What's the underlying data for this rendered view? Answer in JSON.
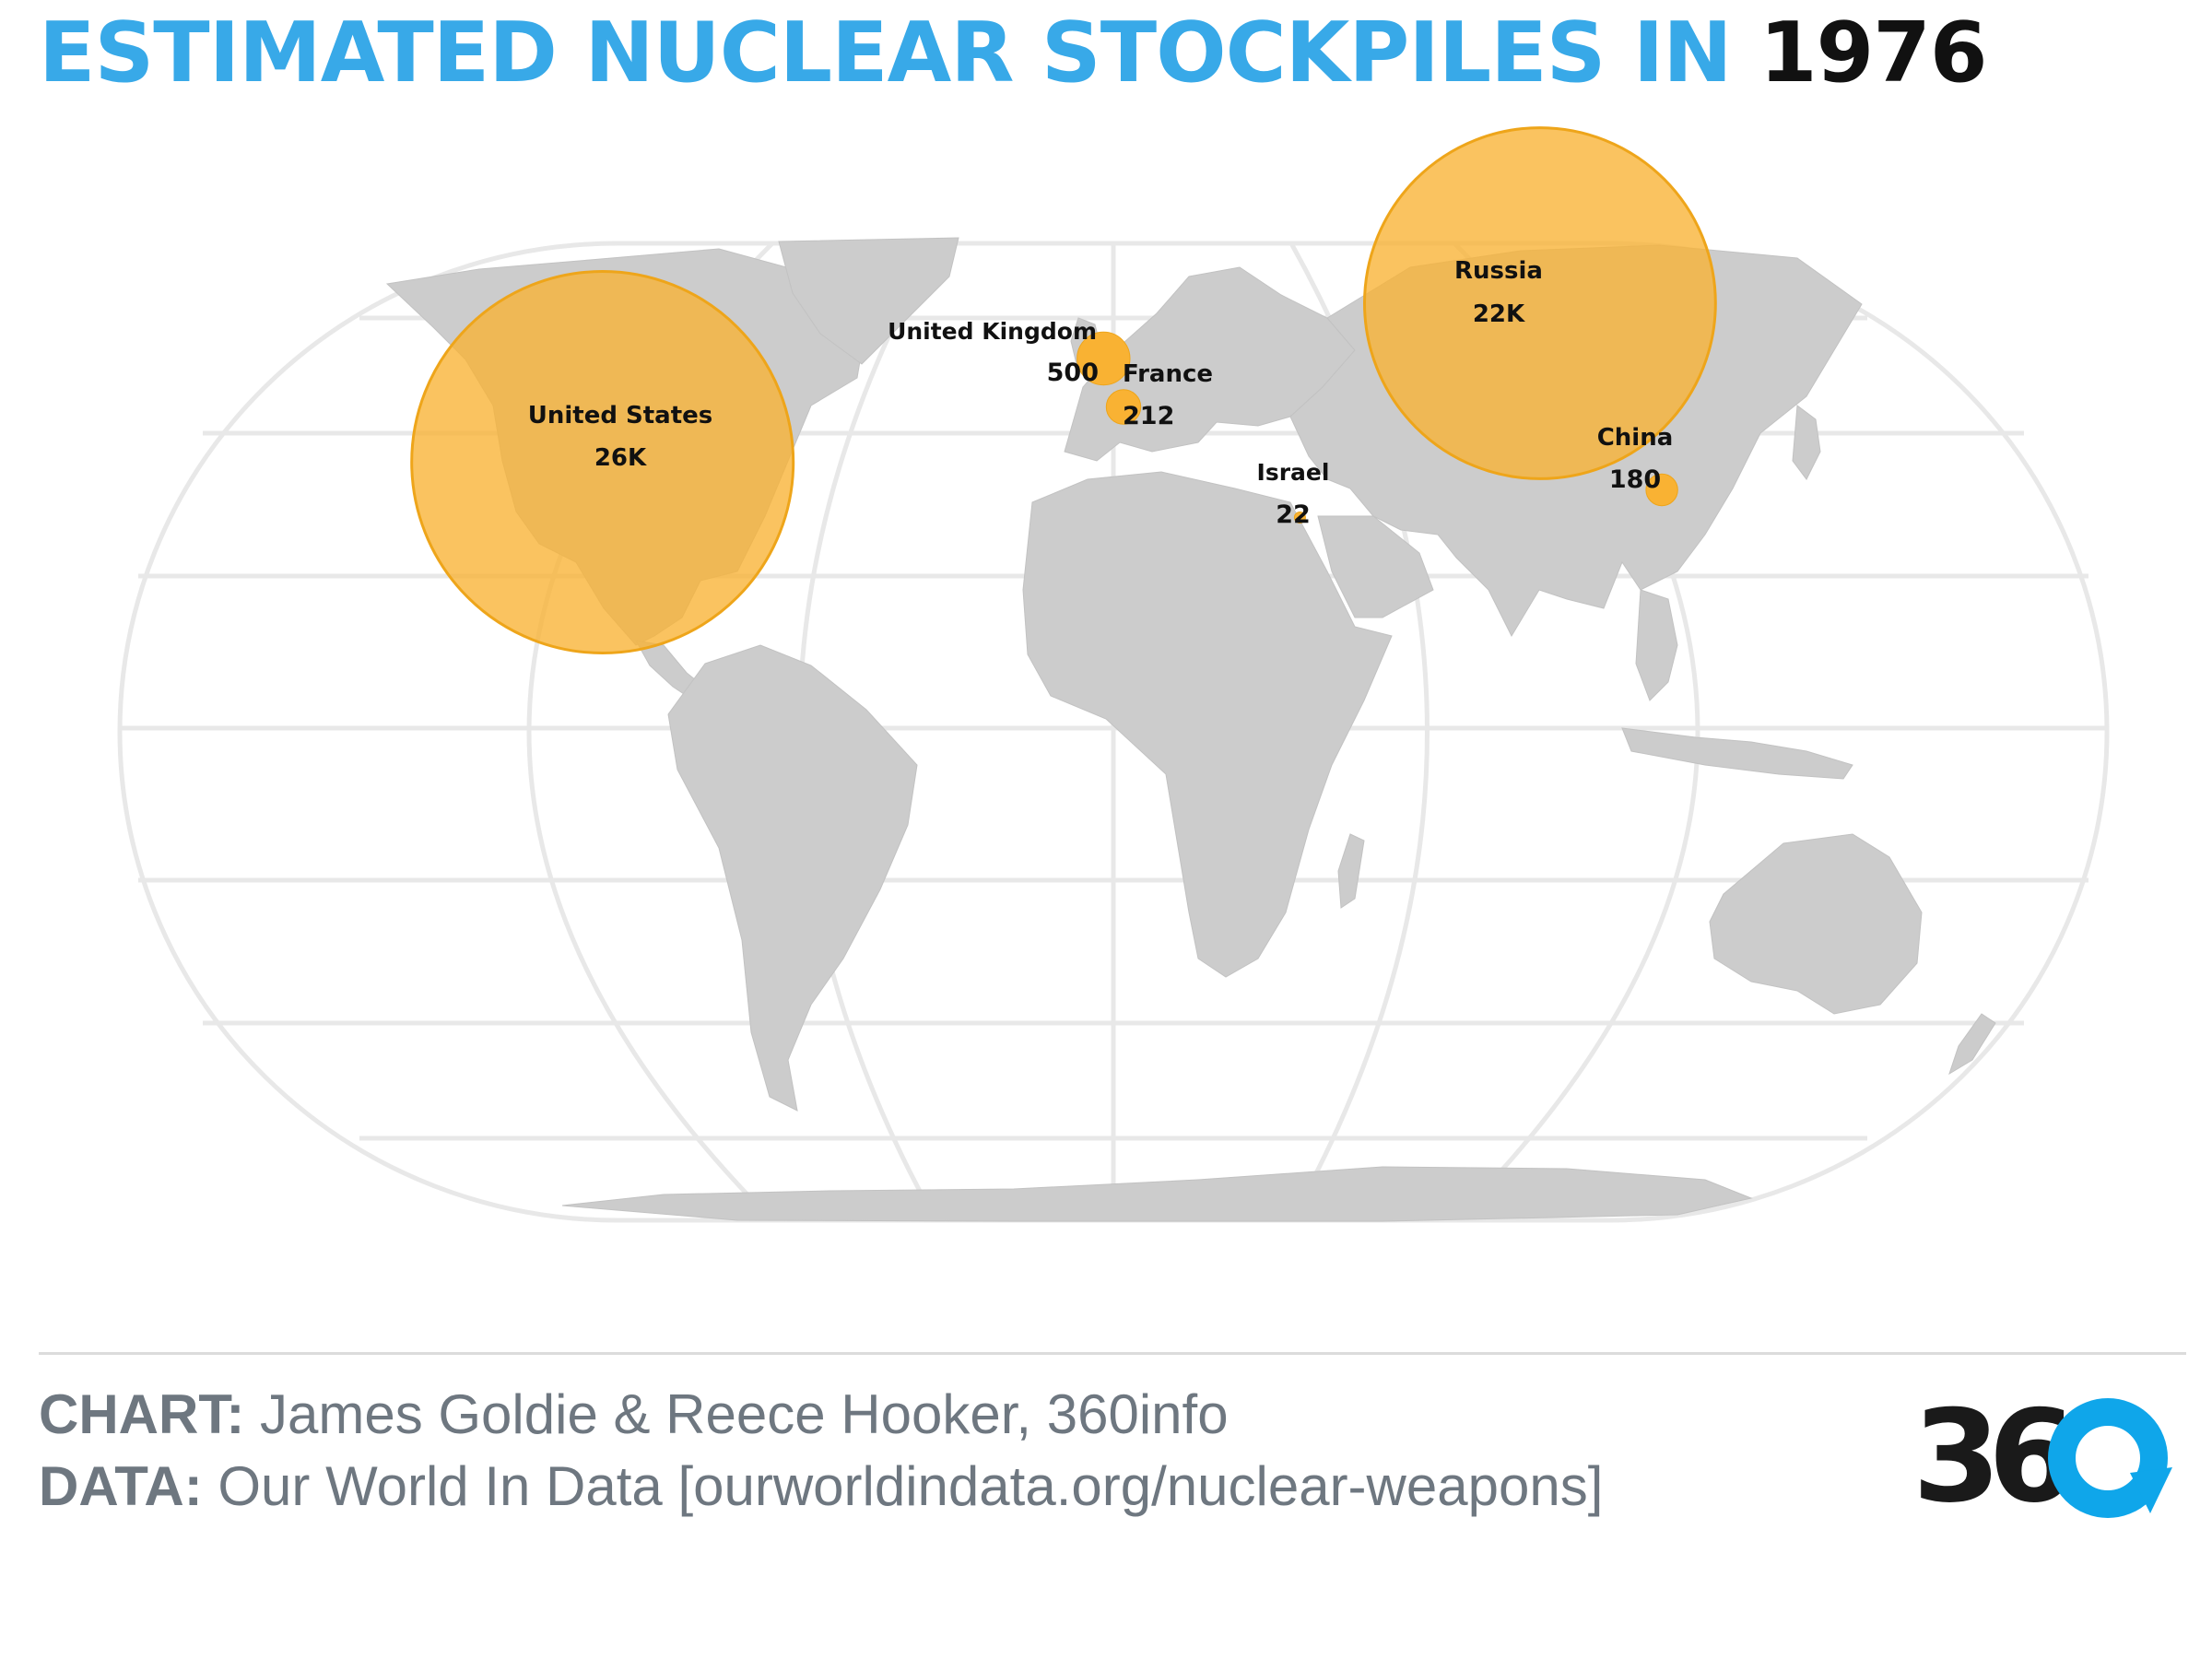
{
  "title": {
    "main": "ESTIMATED NUCLEAR STOCKPILES IN",
    "year": "1976"
  },
  "chart_data": {
    "type": "bubble-map",
    "year": "1976",
    "marker_color": "#f9b233",
    "countries": [
      {
        "name": "United States",
        "value_label": "26K",
        "value": 26000,
        "lon": -98,
        "lat": 39
      },
      {
        "name": "Russia",
        "value_label": "22K",
        "value": 22000,
        "lon": 90,
        "lat": 62
      },
      {
        "name": "United Kingdom",
        "value_label": "500",
        "value": 500,
        "lon": -2,
        "lat": 54
      },
      {
        "name": "France",
        "value_label": "212",
        "value": 212,
        "lon": 2,
        "lat": 47
      },
      {
        "name": "China",
        "value_label": "180",
        "value": 180,
        "lon": 104,
        "lat": 35
      },
      {
        "name": "Israel",
        "value_label": "22",
        "value": 22,
        "lon": 35,
        "lat": 31
      }
    ]
  },
  "footer": {
    "chart_label": "CHART:",
    "chart_text": "James Goldie & Reece Hooker, 360info",
    "data_label": "DATA:",
    "data_text": "Our World In Data [ourworldindata.org/nuclear-weapons]"
  },
  "logo": {
    "text": "36"
  },
  "colors": {
    "title": "#38a9e8",
    "land": "#cccccc",
    "grid": "#e8e8e8",
    "marker": "#f9b233",
    "logo_blue": "#0fa6ea"
  }
}
